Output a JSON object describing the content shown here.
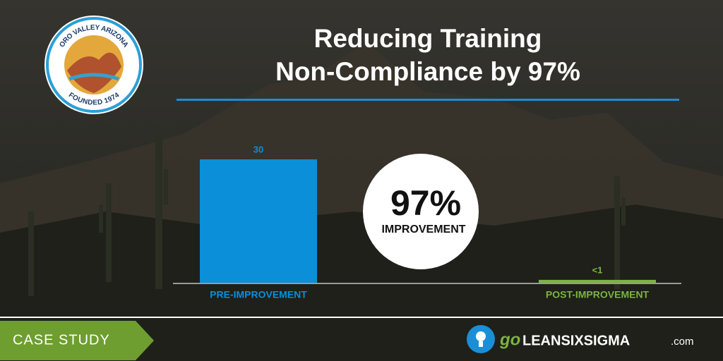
{
  "chart_data": {
    "type": "bar",
    "title": [
      "Reducing Training",
      "Non-Compliance by 97%"
    ],
    "categories": [
      "PRE-IMPROVEMENT",
      "POST-IMPROVEMENT"
    ],
    "values": [
      30,
      0.7
    ],
    "value_labels": [
      "30",
      "<1"
    ],
    "colors": [
      "#0a8fd8",
      "#7cb342"
    ],
    "ylim": [
      0,
      30
    ]
  },
  "badge": {
    "value": "97%",
    "label": "IMPROVEMENT"
  },
  "logo": {
    "top": "ORO VALLEY ARIZONA",
    "bottom": "FOUNDED 1974"
  },
  "footer": {
    "tag": "CASE STUDY",
    "brand_go": "go",
    "brand_name": "LEANSIXSIGMA",
    "brand_domain": ".com"
  }
}
